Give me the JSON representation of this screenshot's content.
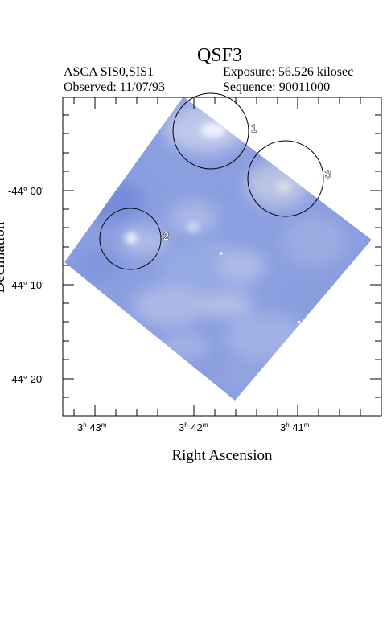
{
  "title": "QSF3",
  "header": {
    "instrument": "ASCA SIS0,SIS1",
    "observed": "Observed: 11/07/93",
    "exposure": "Exposure: 56.526 kilosec",
    "sequence": "Sequence: 90011000"
  },
  "axes": {
    "xlabel": "Right Ascension",
    "ylabel": "Declination",
    "x_ticks": [
      {
        "h": "3",
        "m": "43",
        "label": "3h 43m"
      },
      {
        "h": "3",
        "m": "42",
        "label": "3h 42m"
      },
      {
        "h": "3",
        "m": "41",
        "label": "3h 41m"
      }
    ],
    "y_ticks": [
      {
        "label": "-44° 00'"
      },
      {
        "label": "-44° 10'"
      },
      {
        "label": "-44° 20'"
      }
    ]
  },
  "regions": [
    {
      "id": "1"
    },
    {
      "id": "2"
    },
    {
      "id": "3"
    }
  ],
  "colors": {
    "image_base": "#8a9fe0",
    "image_light": "#c9d3ee",
    "frame": "#000000"
  }
}
